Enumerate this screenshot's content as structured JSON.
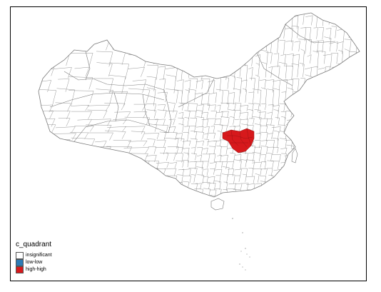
{
  "legend": {
    "title": "c_quadrant",
    "items": [
      {
        "label": "insignificant",
        "color": "#ffffff"
      },
      {
        "label": "low-low",
        "color": "#2c7bb6"
      },
      {
        "label": "high-high",
        "color": "#d7191c"
      }
    ]
  },
  "colors": {
    "boundary": "#7a7a7a",
    "frame": "#000000",
    "background": "#ffffff"
  }
}
